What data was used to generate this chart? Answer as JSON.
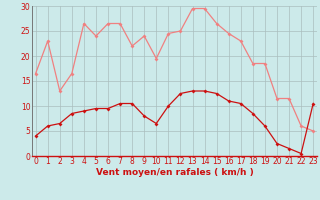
{
  "hours": [
    0,
    1,
    2,
    3,
    4,
    5,
    6,
    7,
    8,
    9,
    10,
    11,
    12,
    13,
    14,
    15,
    16,
    17,
    18,
    19,
    20,
    21,
    22,
    23
  ],
  "wind_avg": [
    4,
    6,
    6.5,
    8.5,
    9,
    9.5,
    9.5,
    10.5,
    10.5,
    8,
    6.5,
    10,
    12.5,
    13,
    13,
    12.5,
    11,
    10.5,
    8.5,
    6,
    2.5,
    1.5,
    0.5,
    10.5
  ],
  "wind_gust": [
    16.5,
    23,
    13,
    16.5,
    26.5,
    24,
    26.5,
    26.5,
    22,
    24,
    19.5,
    24.5,
    25,
    29.5,
    29.5,
    26.5,
    24.5,
    23,
    18.5,
    18.5,
    11.5,
    11.5,
    6,
    5
  ],
  "xlabel": "Vent moyen/en rafales ( km/h )",
  "ymax": 30,
  "ymin": 0,
  "yticks": [
    0,
    5,
    10,
    15,
    20,
    25,
    30
  ],
  "bg_color": "#cceaea",
  "grid_color": "#aabebe",
  "line_avg_color": "#cc1111",
  "line_gust_color": "#f08080",
  "marker_size": 2.0,
  "line_width": 0.9,
  "tick_fontsize": 5.5,
  "label_fontsize": 6.5
}
